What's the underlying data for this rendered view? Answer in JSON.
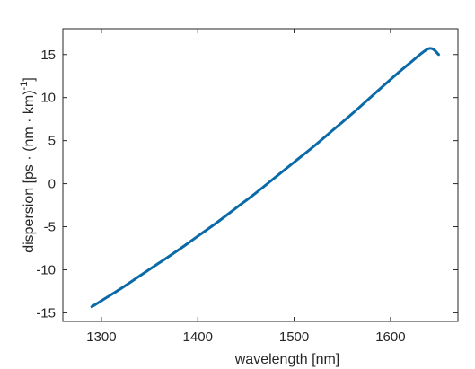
{
  "chart_data": {
    "type": "line",
    "title": "",
    "xlabel": "wavelength [nm]",
    "ylabel": {
      "main": "dispersion [ps · (nm · km)",
      "sup": "-1",
      "close": "]"
    },
    "xlim": [
      1260,
      1670
    ],
    "ylim": [
      -16,
      18
    ],
    "xticks": [
      "1300",
      "1400",
      "1500",
      "1600"
    ],
    "xtick_values": [
      1300,
      1400,
      1500,
      1600
    ],
    "yticks": [
      "-15",
      "-10",
      "-5",
      "0",
      "5",
      "10",
      "15"
    ],
    "ytick_values": [
      -15,
      -10,
      -5,
      0,
      5,
      10,
      15
    ],
    "grid": false,
    "series": [
      {
        "color": "#0a6aa8",
        "x": [
          1290,
          1300,
          1320,
          1340,
          1360,
          1380,
          1400,
          1420,
          1440,
          1460,
          1480,
          1500,
          1520,
          1540,
          1560,
          1580,
          1600,
          1620,
          1640,
          1650
        ],
        "y": [
          -14.3,
          -13.6,
          -12.2,
          -10.7,
          -9.2,
          -7.7,
          -6.1,
          -4.5,
          -2.8,
          -1.1,
          0.7,
          2.5,
          4.3,
          6.2,
          8.1,
          10.1,
          12.1,
          14.0,
          15.7,
          15.0
        ]
      }
    ]
  }
}
